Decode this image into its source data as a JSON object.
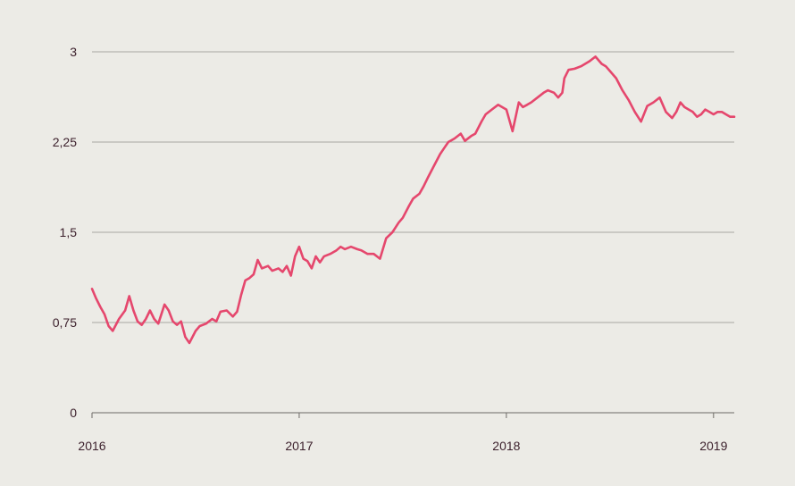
{
  "chart_data": {
    "type": "line",
    "title": "",
    "xlabel": "",
    "ylabel": "",
    "xlim": [
      2016.0,
      2019.1
    ],
    "ylim": [
      0,
      3.0
    ],
    "y_ticks": [
      {
        "value": 0,
        "label": "0"
      },
      {
        "value": 0.75,
        "label": "0,75"
      },
      {
        "value": 1.5,
        "label": "1,5"
      },
      {
        "value": 2.25,
        "label": "2,25"
      },
      {
        "value": 3.0,
        "label": "3"
      }
    ],
    "x_ticks": [
      {
        "value": 2016,
        "label": "2016"
      },
      {
        "value": 2017,
        "label": "2017"
      },
      {
        "value": 2018,
        "label": "2018"
      },
      {
        "value": 2019,
        "label": "2019"
      }
    ],
    "grid": {
      "horizontal": true,
      "vertical": false
    },
    "legend": "none",
    "colors": {
      "background": "#ecebe6",
      "line": "#e5476d",
      "grid": "#a9a7a1",
      "text": "#3b1f2b"
    },
    "series": [
      {
        "x": [
          2016.0,
          2016.02,
          2016.04,
          2016.06,
          2016.08,
          2016.1,
          2016.13,
          2016.16,
          2016.18,
          2016.2,
          2016.22,
          2016.24,
          2016.26,
          2016.28,
          2016.3,
          2016.32,
          2016.35,
          2016.37,
          2016.39,
          2016.41,
          2016.43,
          2016.45,
          2016.47,
          2016.5,
          2016.52,
          2016.55,
          2016.58,
          2016.6,
          2016.62,
          2016.65,
          2016.68,
          2016.7,
          2016.72,
          2016.74,
          2016.76,
          2016.78,
          2016.8,
          2016.82,
          2016.85,
          2016.87,
          2016.9,
          2016.92,
          2016.94,
          2016.96,
          2016.98,
          2017.0,
          2017.02,
          2017.04,
          2017.06,
          2017.08,
          2017.1,
          2017.12,
          2017.15,
          2017.18,
          2017.2,
          2017.22,
          2017.25,
          2017.28,
          2017.3,
          2017.33,
          2017.36,
          2017.39,
          2017.42,
          2017.45,
          2017.48,
          2017.5,
          2017.53,
          2017.55,
          2017.58,
          2017.6,
          2017.62,
          2017.65,
          2017.68,
          2017.7,
          2017.72,
          2017.75,
          2017.78,
          2017.8,
          2017.83,
          2017.85,
          2017.88,
          2017.9,
          2017.93,
          2017.96,
          2018.0,
          2018.03,
          2018.06,
          2018.08,
          2018.1,
          2018.12,
          2018.15,
          2018.18,
          2018.2,
          2018.23,
          2018.25,
          2018.27,
          2018.28,
          2018.3,
          2018.33,
          2018.36,
          2018.4,
          2018.43,
          2018.46,
          2018.48,
          2018.5,
          2018.53,
          2018.56,
          2018.59,
          2018.62,
          2018.65,
          2018.68,
          2018.71,
          2018.74,
          2018.77,
          2018.8,
          2018.82,
          2018.84,
          2018.86,
          2018.88,
          2018.9,
          2018.92,
          2018.94,
          2018.96,
          2018.98,
          2019.0,
          2019.02,
          2019.04,
          2019.06,
          2019.08,
          2019.1
        ],
        "values": [
          1.03,
          0.95,
          0.88,
          0.82,
          0.72,
          0.68,
          0.78,
          0.85,
          0.97,
          0.85,
          0.76,
          0.73,
          0.78,
          0.85,
          0.78,
          0.74,
          0.9,
          0.85,
          0.76,
          0.73,
          0.76,
          0.63,
          0.58,
          0.68,
          0.72,
          0.74,
          0.78,
          0.76,
          0.84,
          0.85,
          0.8,
          0.84,
          0.98,
          1.1,
          1.12,
          1.15,
          1.27,
          1.2,
          1.22,
          1.18,
          1.2,
          1.17,
          1.22,
          1.14,
          1.3,
          1.38,
          1.28,
          1.26,
          1.2,
          1.3,
          1.25,
          1.3,
          1.32,
          1.35,
          1.38,
          1.36,
          1.38,
          1.36,
          1.35,
          1.32,
          1.32,
          1.28,
          1.45,
          1.5,
          1.58,
          1.62,
          1.72,
          1.78,
          1.82,
          1.88,
          1.95,
          2.05,
          2.15,
          2.2,
          2.25,
          2.28,
          2.32,
          2.26,
          2.3,
          2.32,
          2.42,
          2.48,
          2.52,
          2.56,
          2.52,
          2.34,
          2.58,
          2.54,
          2.56,
          2.58,
          2.62,
          2.66,
          2.68,
          2.66,
          2.62,
          2.66,
          2.78,
          2.85,
          2.86,
          2.88,
          2.92,
          2.96,
          2.9,
          2.88,
          2.84,
          2.78,
          2.68,
          2.6,
          2.5,
          2.42,
          2.55,
          2.58,
          2.62,
          2.5,
          2.45,
          2.5,
          2.58,
          2.54,
          2.52,
          2.5,
          2.46,
          2.48,
          2.52,
          2.5,
          2.48,
          2.5,
          2.5,
          2.48,
          2.46,
          2.46
        ]
      }
    ]
  }
}
